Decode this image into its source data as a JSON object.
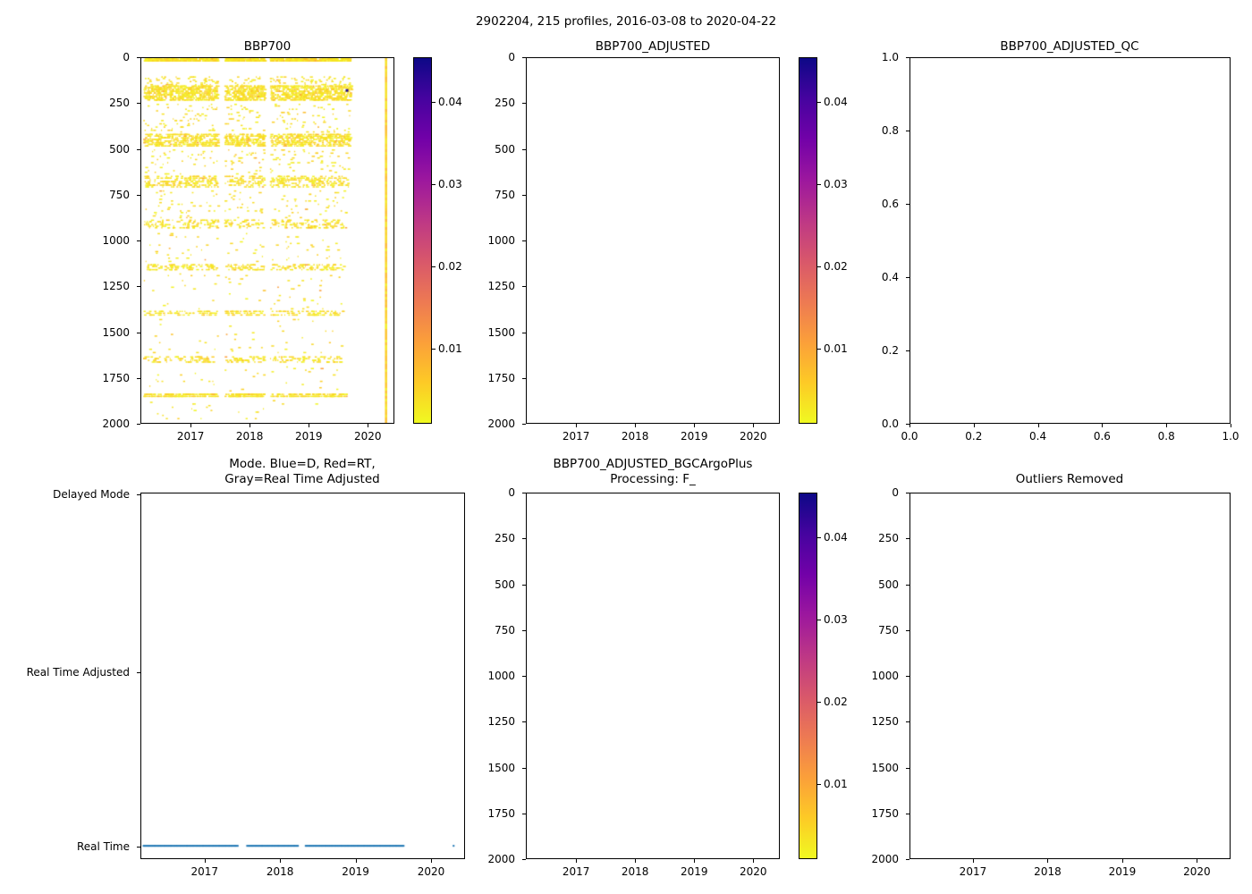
{
  "figure": {
    "title": "2902204, 215 profiles, 2016-03-08 to 2020-04-22",
    "background": "#ffffff"
  },
  "colors": {
    "axis": "#000000",
    "mode_dot": "#1f77b4"
  },
  "colormap": {
    "name": "plasma_reversed",
    "stops": [
      "#0d0887",
      "#46039f",
      "#7201a8",
      "#9c179e",
      "#bd3786",
      "#d8576b",
      "#ed7953",
      "#fb9f3a",
      "#fdca26",
      "#f0f921"
    ]
  },
  "colorbar": {
    "min": 0.0008,
    "max": 0.0455,
    "ticks": [
      0.01,
      0.02,
      0.03,
      0.04
    ],
    "labels": [
      "0.01",
      "0.02",
      "0.03",
      "0.04"
    ]
  },
  "axes_defs": {
    "time": {
      "min": 2016.15,
      "max": 2020.45,
      "ticks": [
        2017,
        2018,
        2019,
        2020
      ],
      "labels": [
        "2017",
        "2018",
        "2019",
        "2020"
      ]
    },
    "depth": {
      "min": 0,
      "max": 2000,
      "inverted": true,
      "ticks": [
        0,
        250,
        500,
        750,
        1000,
        1250,
        1500,
        1750,
        2000
      ],
      "labels": [
        "0",
        "250",
        "500",
        "750",
        "1000",
        "1250",
        "1500",
        "1750",
        "2000"
      ]
    },
    "unit": {
      "min": 0,
      "max": 1,
      "ticks": [
        0,
        0.2,
        0.4,
        0.6,
        0.8,
        1.0
      ],
      "labels": [
        "0.0",
        "0.2",
        "0.4",
        "0.6",
        "0.8",
        "1.0"
      ]
    }
  },
  "chart_data": [
    {
      "type": "scatter",
      "title": "BBP700",
      "x_axis": "time",
      "y_axis": "depth",
      "colorbar": true,
      "value_typical": [
        0.0012,
        0.0055
      ],
      "time_gaps": [
        [
          2017.45,
          2017.56
        ],
        [
          2018.24,
          2018.34
        ]
      ],
      "bands": [
        {
          "depth": [
            2,
            20
          ],
          "time": [
            2016.18,
            2019.72
          ],
          "count": 850
        },
        {
          "depth": [
            100,
            150
          ],
          "time": [
            2016.18,
            2019.7
          ],
          "count": 140
        },
        {
          "depth": [
            150,
            235
          ],
          "time": [
            2016.18,
            2019.72
          ],
          "count": 1500
        },
        {
          "depth": [
            250,
            410
          ],
          "time": [
            2016.18,
            2019.7
          ],
          "count": 170
        },
        {
          "depth": [
            415,
            487
          ],
          "time": [
            2016.18,
            2019.7
          ],
          "count": 1000
        },
        {
          "depth": [
            500,
            640
          ],
          "time": [
            2016.18,
            2019.68
          ],
          "count": 140
        },
        {
          "depth": [
            645,
            712
          ],
          "time": [
            2016.18,
            2019.68
          ],
          "count": 520
        },
        {
          "depth": [
            725,
            880
          ],
          "time": [
            2016.18,
            2019.65
          ],
          "count": 110
        },
        {
          "depth": [
            885,
            935
          ],
          "time": [
            2016.18,
            2019.65
          ],
          "count": 300
        },
        {
          "depth": [
            950,
            1120
          ],
          "time": [
            2016.18,
            2019.6
          ],
          "count": 70
        },
        {
          "depth": [
            1130,
            1165
          ],
          "time": [
            2016.18,
            2019.6
          ],
          "count": 260
        },
        {
          "depth": [
            1180,
            1380
          ],
          "time": [
            2016.18,
            2019.6
          ],
          "count": 55
        },
        {
          "depth": [
            1385,
            1415
          ],
          "time": [
            2016.18,
            2019.6
          ],
          "count": 220
        },
        {
          "depth": [
            1430,
            1620
          ],
          "time": [
            2016.18,
            2019.6
          ],
          "count": 45
        },
        {
          "depth": [
            1635,
            1672
          ],
          "time": [
            2016.18,
            2019.6
          ],
          "count": 230
        },
        {
          "depth": [
            1690,
            1830
          ],
          "time": [
            2016.18,
            2019.6
          ],
          "count": 35
        },
        {
          "depth": [
            1840,
            1862
          ],
          "time": [
            2016.18,
            2019.65
          ],
          "count": 420
        },
        {
          "depth": [
            1875,
            2000
          ],
          "time": [
            2016.18,
            2019.6
          ],
          "count": 25
        }
      ],
      "vertical_profile": {
        "time": 2020.32,
        "depth": [
          0,
          2000
        ],
        "value_range": [
          0.002,
          0.008
        ]
      },
      "dark_point": {
        "time": 2019.65,
        "depth": 175,
        "value": 0.044
      }
    },
    {
      "type": "scatter",
      "title": "BBP700_ADJUSTED",
      "x_axis": "time",
      "y_axis": "depth",
      "colorbar": true,
      "points": []
    },
    {
      "type": "scatter",
      "title": "BBP700_ADJUSTED_QC",
      "x_axis": "unit",
      "y_axis": "unit",
      "points": []
    },
    {
      "type": "scatter",
      "title": "Mode. Blue=D, Red=RT,",
      "title2": "Gray=Real Time Adjusted",
      "x_axis": "time",
      "y_axis": "category",
      "categories": [
        {
          "label": "Delayed Mode",
          "pos": 0.005
        },
        {
          "label": "Real Time Adjusted",
          "pos": 0.49
        },
        {
          "label": "Real Time",
          "pos": 0.966
        }
      ],
      "dot_category": "Real Time",
      "spacing_years": 0.0165,
      "segments": [
        [
          2016.18,
          2017.45
        ],
        [
          2017.56,
          2018.24
        ],
        [
          2018.34,
          2019.65
        ]
      ],
      "isolated": [
        2020.31
      ]
    },
    {
      "type": "scatter",
      "title": "BBP700_ADJUSTED_BGCArgoPlus",
      "title2": "Processing: F_",
      "x_axis": "time",
      "y_axis": "depth",
      "colorbar": true,
      "points": []
    },
    {
      "type": "scatter",
      "title": "Outliers Removed",
      "x_axis": "time",
      "y_axis": "depth",
      "points": []
    }
  ]
}
